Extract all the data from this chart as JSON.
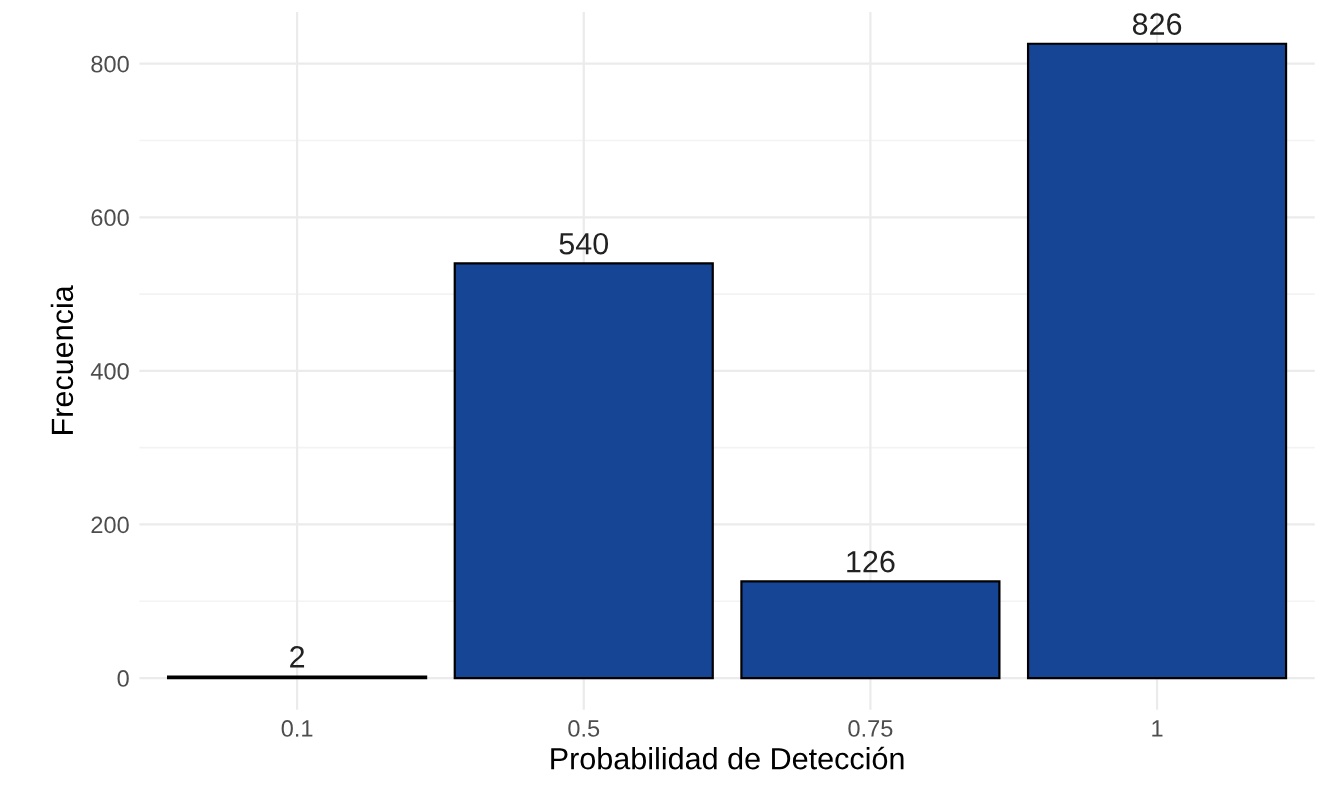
{
  "chart_data": {
    "type": "bar",
    "xlabel": "Probabilidad de Detección",
    "ylabel": "Frecuencia",
    "categories": [
      "0.1",
      "0.5",
      "0.75",
      "1"
    ],
    "values": [
      2,
      540,
      126,
      826
    ],
    "color": "#174596",
    "ylim": [
      -41.3,
      867.3
    ],
    "yticks": [
      0,
      200,
      400,
      600,
      800
    ],
    "grid": true,
    "data_labels": true
  }
}
